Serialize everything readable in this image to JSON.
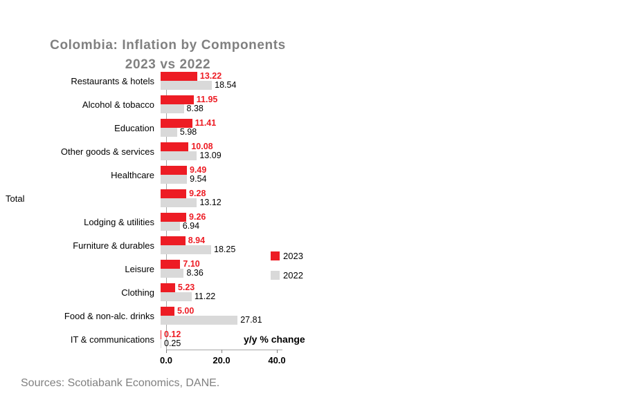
{
  "source": "Sources: Scotiabank Economics, DANE.",
  "chart_data": {
    "type": "bar",
    "orientation": "horizontal",
    "title": "Colombia: Inflation by Components",
    "subtitle": "2023 vs 2022",
    "xlabel": "y/y % change",
    "xlim": [
      0,
      42
    ],
    "x_ticks": [
      0,
      20,
      40
    ],
    "grid": false,
    "legend_position": "middle-right",
    "series_names": [
      "2023",
      "2022"
    ],
    "colors": {
      "y2023": "#ED1C24",
      "y2022": "#D9D9D9"
    },
    "categories": [
      {
        "label": "Restaurants & hotels",
        "y2023": 13.22,
        "y2022": 18.54
      },
      {
        "label": "Alcohol & tobacco",
        "y2023": 11.95,
        "y2022": 8.38
      },
      {
        "label": "Education",
        "y2023": 11.41,
        "y2022": 5.98
      },
      {
        "label": "Other goods & services",
        "y2023": 10.08,
        "y2022": 13.09
      },
      {
        "label": "Healthcare",
        "y2023": 9.49,
        "y2022": 9.54
      },
      {
        "label": "Total",
        "y2023": 9.28,
        "y2022": 13.12,
        "label_far_left": true
      },
      {
        "label": "Lodging & utilities",
        "y2023": 9.26,
        "y2022": 6.94
      },
      {
        "label": "Furniture & durables",
        "y2023": 8.94,
        "y2022": 18.25
      },
      {
        "label": "Leisure",
        "y2023": 7.1,
        "y2022": 8.36
      },
      {
        "label": "Clothing",
        "y2023": 5.23,
        "y2022": 11.22
      },
      {
        "label": "Food & non-alc. drinks",
        "y2023": 5.0,
        "y2022": 27.81
      },
      {
        "label": "IT & communications",
        "y2023": 0.12,
        "y2022": 0.25
      }
    ]
  }
}
